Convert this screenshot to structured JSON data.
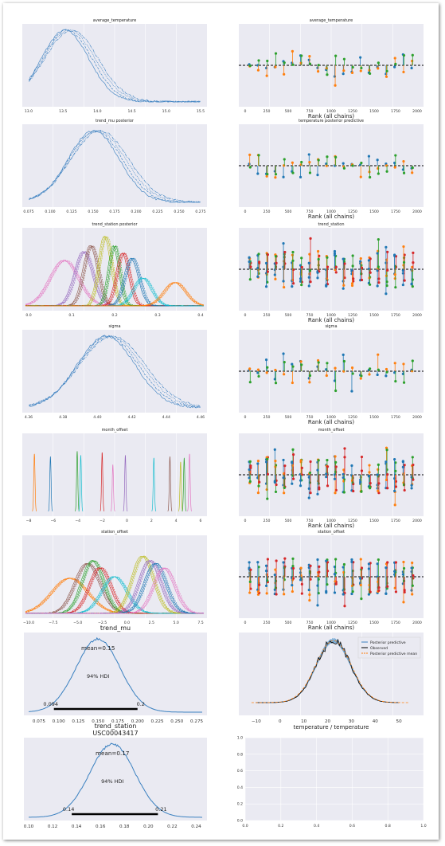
{
  "chart_data": [
    {
      "type": "line",
      "kind": "kde-chains",
      "title": "average_temperature",
      "xticks": [
        "13.0",
        "13.5",
        "14.0",
        "14.5",
        "15.0",
        "15.5"
      ],
      "xlim": [
        12.9,
        15.8
      ],
      "mode": 0.24,
      "spread": 0.14,
      "components": 1
    },
    {
      "type": "scatter",
      "kind": "rank-vlines",
      "title": "average_temperature",
      "xlabel": "",
      "xticks": [
        "0",
        "250",
        "500",
        "750",
        "1000",
        "1250",
        "1500",
        "1750",
        "2000"
      ],
      "xlim": [
        -100,
        2080
      ],
      "bins": 20
    },
    {
      "type": "line",
      "kind": "kde-chains",
      "title": "trend_mu posterior",
      "xticks": [
        "0.075",
        "0.100",
        "0.125",
        "0.150",
        "0.175",
        "0.200",
        "0.225",
        "0.250",
        "0.275"
      ],
      "xlim": [
        0.062,
        0.282
      ],
      "mode": 0.4,
      "spread": 0.15,
      "components": 1
    },
    {
      "type": "scatter",
      "kind": "rank-vlines",
      "title": "temperature posterior predictive",
      "xlabel": "Rank (all chains)",
      "xticks": [
        "0",
        "250",
        "500",
        "750",
        "1000",
        "1250",
        "1500",
        "1750",
        "2000"
      ],
      "xlim": [
        -100,
        2080
      ],
      "bins": 20
    },
    {
      "type": "line",
      "kind": "kde-multi",
      "title": "trend_station posterior",
      "xticks": [
        "0.0",
        "0.1",
        "0.2",
        "0.3",
        "0.4"
      ],
      "xlim": [
        -0.08,
        0.44
      ],
      "components": 9
    },
    {
      "type": "scatter",
      "kind": "rank-vlines",
      "title": "trend_station",
      "xlabel": "Rank (all chains)",
      "xticks": [
        "0",
        "250",
        "500",
        "750",
        "1000",
        "1250",
        "1500",
        "1750",
        "2000"
      ],
      "xlim": [
        -100,
        2080
      ],
      "bins": 20
    },
    {
      "type": "line",
      "kind": "kde-chains",
      "title": "sigma",
      "xticks": [
        "4.36",
        "4.38",
        "4.40",
        "4.42",
        "4.44",
        "4.46"
      ],
      "xlim": [
        4.352,
        4.47
      ],
      "mode": 0.47,
      "spread": 0.17,
      "components": 1
    },
    {
      "type": "scatter",
      "kind": "rank-vlines",
      "title": "sigma",
      "xlabel": "Rank (all chains)",
      "xticks": [
        "0",
        "250",
        "500",
        "750",
        "1000",
        "1250",
        "1500",
        "1750",
        "2000"
      ],
      "xlim": [
        -100,
        2080
      ],
      "bins": 20
    },
    {
      "type": "line",
      "kind": "kde-spikes",
      "title": "month_offset",
      "xticks": [
        "−8",
        "−6",
        "−4",
        "−2",
        "0",
        "2",
        "4",
        "6"
      ],
      "xlim": [
        -8.3,
        7.5
      ],
      "components": 12
    },
    {
      "type": "scatter",
      "kind": "rank-vlines",
      "title": "month_offset",
      "xlabel": "Rank (all chains)",
      "xticks": [
        "0",
        "250",
        "500",
        "750",
        "1000",
        "1250",
        "1500",
        "1750",
        "2000"
      ],
      "xlim": [
        -100,
        2080
      ],
      "bins": 20
    },
    {
      "type": "line",
      "kind": "kde-multi",
      "title": "station_offset",
      "xticks": [
        "−10.0",
        "−7.5",
        "−5.0",
        "−2.5",
        "0.0",
        "2.5",
        "5.0",
        "7.5"
      ],
      "xlim": [
        -10.2,
        8.2
      ],
      "components": 9
    },
    {
      "type": "scatter",
      "kind": "rank-vlines",
      "title": "station_offset",
      "xlabel": "Rank (all chains)",
      "xticks": [
        "0",
        "250",
        "500",
        "750",
        "1000",
        "1250",
        "1500",
        "1750",
        "2000"
      ],
      "xlim": [
        -100,
        2080
      ],
      "bins": 20
    },
    {
      "type": "line",
      "kind": "posterior",
      "title": "trend_mu",
      "xticks": [
        "0.075",
        "0.100",
        "0.125",
        "0.150",
        "0.175",
        "0.200",
        "0.225",
        "0.250",
        "0.275"
      ],
      "xlim": [
        0.062,
        0.282
      ],
      "mean_label": "mean=0.15",
      "hdi_label": "94% HDI",
      "hdi_low_label": "0.094",
      "hdi_high_label": "0.2",
      "hdi": [
        0.094,
        0.2
      ],
      "mean": 0.15
    },
    {
      "type": "line",
      "kind": "ppc",
      "title": "",
      "xticks": [
        "−10",
        "0",
        "10",
        "20",
        "30",
        "40",
        "50"
      ],
      "xlim": [
        -16,
        59
      ],
      "legend": [
        "Posterior predictive",
        "Observed",
        "Posterior predictive mean"
      ],
      "legend_pos": "top-right",
      "xlabel": "temperature / temperature"
    },
    {
      "type": "line",
      "kind": "posterior",
      "title": "trend_station\nUSC00043417",
      "title_lines": [
        "trend_station",
        "USC00043417"
      ],
      "xticks": [
        "0.10",
        "0.12",
        "0.14",
        "0.16",
        "0.18",
        "0.20",
        "0.22",
        "0.24"
      ],
      "xlim": [
        0.1,
        0.245
      ],
      "mean_label": "mean=0.17",
      "hdi_label": "94% HDI",
      "hdi_low_label": "0.14",
      "hdi_high_label": "0.21",
      "hdi": [
        0.136,
        0.208
      ],
      "mean": 0.17
    },
    {
      "type": "line",
      "kind": "empty",
      "title": "",
      "xticks": [
        "0.0",
        "0.2",
        "0.4",
        "0.6",
        "0.8",
        "1.0"
      ],
      "yticks": [
        "0.0",
        "0.2",
        "0.4",
        "0.6",
        "0.8",
        "1.0"
      ],
      "xlim": [
        0,
        1
      ],
      "ylim": [
        0,
        1
      ]
    }
  ],
  "colors": {
    "panel_bg": "#eaeaf2",
    "chain": "#3a80c0",
    "orange": "#ff7f0e",
    "green": "#2ca02c",
    "red": "#d62728",
    "purple": "#9467bd",
    "brown": "#8c564b",
    "pink": "#e377c2",
    "olive": "#bcbd22",
    "cyan": "#17becf",
    "blue": "#1f77b4",
    "observed": "#000000",
    "ppc_mean": "#ff7f0e"
  }
}
